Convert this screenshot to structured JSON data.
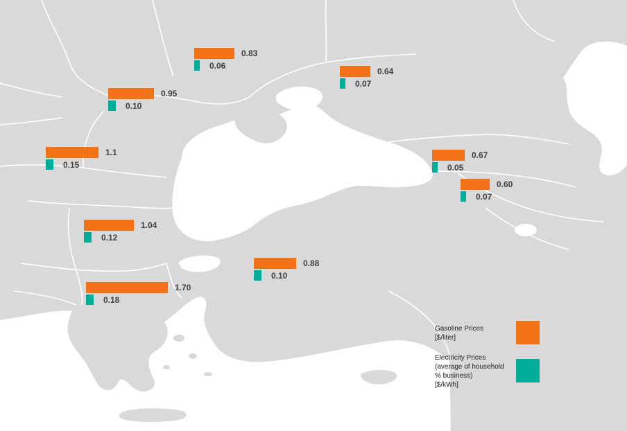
{
  "colors": {
    "land": "#d9d9d9",
    "sea": "#ffffff",
    "border": "#ffffff",
    "gasoline": "#f47216",
    "electricity": "#00ad9a",
    "label": "#404040"
  },
  "scale": {
    "gasoline_max": 1.7,
    "electricity_max": 0.18
  },
  "countries": [
    {
      "gasoline": 0.83,
      "gasoline_label": "0.83",
      "electricity": 0.06,
      "electricity_label": "0.06"
    },
    {
      "gasoline": 0.64,
      "gasoline_label": "0.64",
      "electricity": 0.07,
      "electricity_label": "0.07"
    },
    {
      "gasoline": 0.95,
      "gasoline_label": "0.95",
      "electricity": 0.1,
      "electricity_label": "0.10"
    },
    {
      "gasoline": 1.1,
      "gasoline_label": "1.1",
      "electricity": 0.15,
      "electricity_label": "0.15"
    },
    {
      "gasoline": 0.67,
      "gasoline_label": "0.67",
      "electricity": 0.05,
      "electricity_label": "0.05"
    },
    {
      "gasoline": 0.6,
      "gasoline_label": "0.60",
      "electricity": 0.07,
      "electricity_label": "0.07"
    },
    {
      "gasoline": 1.04,
      "gasoline_label": "1.04",
      "electricity": 0.12,
      "electricity_label": "0.12"
    },
    {
      "gasoline": 0.88,
      "gasoline_label": "0.88",
      "electricity": 0.1,
      "electricity_label": "0.10"
    },
    {
      "gasoline": 1.7,
      "gasoline_label": "1.70",
      "electricity": 0.18,
      "electricity_label": "0.18"
    }
  ],
  "legend": {
    "gasoline": {
      "line1": "Gasoline Prices",
      "line2": "[$/liter]"
    },
    "electricity": {
      "line1": "Electricity Prices",
      "line2": "(average of household",
      "line3": "% business)",
      "line4": "[$/kWh]"
    }
  }
}
